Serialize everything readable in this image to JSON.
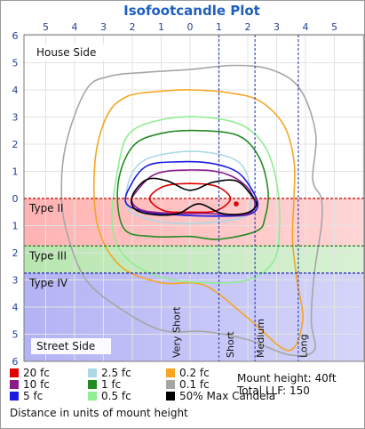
{
  "chart_data": {
    "type": "contour",
    "title": "Isofootcandle Plot",
    "x_ticks": [
      "5",
      "4",
      "3",
      "2",
      "1",
      "0",
      "1",
      "2",
      "3",
      "4",
      "5"
    ],
    "y_ticks": [
      "6",
      "5",
      "4",
      "3",
      "2",
      "1",
      "0",
      "1",
      "2",
      "3",
      "4",
      "5",
      "6"
    ],
    "xlim": [
      -6,
      6
    ],
    "ylim": [
      -6,
      6.5
    ],
    "grid": true,
    "annotations": {
      "house_side": "House Side",
      "street_side": "Street Side"
    },
    "bands": [
      {
        "label": "Type II",
        "from": 0,
        "to": 1.75,
        "color": "#ffb3b3"
      },
      {
        "label": "Type III",
        "from": 1.75,
        "to": 2.75,
        "color": "#b8e6b0"
      },
      {
        "label": "Type IV",
        "from": 2.75,
        "to": 6.5,
        "color": "#b3b3f5"
      }
    ],
    "dividers": [
      {
        "y": 0,
        "color": "#c00000"
      },
      {
        "y": 1.75,
        "color": "#1a7a1a"
      },
      {
        "y": 2.75,
        "color": "#1a1ab0"
      }
    ],
    "verticals": [
      {
        "label": "Very Short",
        "x": 1.0
      },
      {
        "label": "Short",
        "x": 1.0
      },
      {
        "label": "Medium",
        "x": 2.25
      },
      {
        "label": "Long",
        "x": 3.75
      }
    ],
    "max_candela_point": {
      "x": 1.6,
      "y": 0.2
    },
    "contours": [
      {
        "name": "0.1 fc",
        "color": "#a6a6a6",
        "pts": [
          [
            -3.6,
            -4.0
          ],
          [
            -2.8,
            -4.5
          ],
          [
            -1.5,
            -4.65
          ],
          [
            0,
            -4.75
          ],
          [
            1.5,
            -4.9
          ],
          [
            2.8,
            -4.75
          ],
          [
            3.8,
            -4.05
          ],
          [
            4.35,
            -2.4
          ],
          [
            4.25,
            -0.7
          ],
          [
            4.55,
            0
          ],
          [
            4.55,
            1.0
          ],
          [
            4.3,
            2.8
          ],
          [
            4.2,
            4.5
          ],
          [
            4.3,
            5.6
          ],
          [
            3.4,
            5.75
          ],
          [
            2.0,
            5.2
          ],
          [
            0.5,
            4.9
          ],
          [
            -1.0,
            4.85
          ],
          [
            -2.5,
            4.0
          ],
          [
            -3.6,
            3.0
          ],
          [
            -4.2,
            1.5
          ],
          [
            -4.45,
            0
          ],
          [
            -4.3,
            -2.0
          ]
        ]
      },
      {
        "name": "0.2 fc",
        "color": "#f5a623",
        "pts": [
          [
            -2.9,
            -3.0
          ],
          [
            -2.2,
            -3.75
          ],
          [
            -1.0,
            -3.95
          ],
          [
            0,
            -4.0
          ],
          [
            1.3,
            -3.9
          ],
          [
            2.4,
            -3.6
          ],
          [
            3.25,
            -2.7
          ],
          [
            3.6,
            -1.4
          ],
          [
            3.6,
            0
          ],
          [
            3.55,
            1.5
          ],
          [
            3.7,
            3.0
          ],
          [
            3.9,
            4.5
          ],
          [
            3.4,
            5.6
          ],
          [
            2.0,
            4.4
          ],
          [
            0.5,
            3.2
          ],
          [
            -1.0,
            3.1
          ],
          [
            -2.4,
            2.5
          ],
          [
            -3.2,
            1.0
          ],
          [
            -3.3,
            -1.3
          ]
        ]
      },
      {
        "name": "0.5 fc",
        "color": "#90ee90",
        "pts": [
          [
            -2.5,
            -1.1
          ],
          [
            -2.1,
            -2.4
          ],
          [
            -1.0,
            -2.9
          ],
          [
            0.4,
            -3.0
          ],
          [
            1.8,
            -2.7
          ],
          [
            2.6,
            -1.9
          ],
          [
            3.0,
            -0.6
          ],
          [
            3.1,
            1.0
          ],
          [
            2.9,
            2.3
          ],
          [
            2.0,
            3.0
          ],
          [
            0.5,
            3.1
          ],
          [
            -1.0,
            2.9
          ],
          [
            -2.2,
            2.2
          ],
          [
            -2.7,
            1.0
          ]
        ]
      },
      {
        "name": "1 fc",
        "color": "#228b22",
        "pts": [
          [
            -2.5,
            -0.5
          ],
          [
            -2.0,
            -1.9
          ],
          [
            -1.0,
            -2.4
          ],
          [
            0.4,
            -2.5
          ],
          [
            1.7,
            -2.3
          ],
          [
            2.4,
            -1.5
          ],
          [
            2.7,
            -0.3
          ],
          [
            2.6,
            0.7
          ],
          [
            2.3,
            1.2
          ],
          [
            1.0,
            1.5
          ],
          [
            0,
            1.4
          ],
          [
            -1.3,
            1.4
          ],
          [
            -2.3,
            1.1
          ]
        ]
      },
      {
        "name": "2.5 fc",
        "color": "#add8e6",
        "pts": [
          [
            -2.1,
            -0.7
          ],
          [
            -1.6,
            -1.4
          ],
          [
            -0.5,
            -1.7
          ],
          [
            0.6,
            -1.7
          ],
          [
            1.6,
            -1.4
          ],
          [
            2.0,
            -0.8
          ],
          [
            2.1,
            0.2
          ],
          [
            1.8,
            0.7
          ],
          [
            0.5,
            0.9
          ],
          [
            -0.7,
            0.9
          ],
          [
            -1.6,
            0.7
          ],
          [
            -2.2,
            0.3
          ]
        ]
      },
      {
        "name": "5 fc",
        "color": "#1a1ae0",
        "pts": [
          [
            -2.1,
            -0.4
          ],
          [
            -1.5,
            -1.2
          ],
          [
            -0.4,
            -1.35
          ],
          [
            0.7,
            -1.3
          ],
          [
            1.6,
            -1.0
          ],
          [
            2.1,
            -0.4
          ],
          [
            2.35,
            0.25
          ],
          [
            2.0,
            0.6
          ],
          [
            0.8,
            0.65
          ],
          [
            -0.5,
            0.6
          ],
          [
            -1.5,
            0.5
          ],
          [
            -2.2,
            0.2
          ]
        ]
      },
      {
        "name": "10 fc",
        "color": "#8b1a8b",
        "pts": [
          [
            -1.9,
            -0.2
          ],
          [
            -1.2,
            -0.9
          ],
          [
            0,
            -1.05
          ],
          [
            1.1,
            -0.95
          ],
          [
            1.9,
            -0.5
          ],
          [
            2.25,
            0.2
          ],
          [
            1.9,
            0.6
          ],
          [
            0.6,
            0.55
          ],
          [
            -0.6,
            0.55
          ],
          [
            -1.6,
            0.45
          ],
          [
            -2.0,
            0.15
          ]
        ]
      },
      {
        "name": "20 fc",
        "color": "#e00000",
        "pts": [
          [
            -1.4,
            0
          ],
          [
            -0.9,
            -0.45
          ],
          [
            0,
            -0.55
          ],
          [
            0.9,
            -0.45
          ],
          [
            1.4,
            0
          ],
          [
            0.9,
            0.45
          ],
          [
            0,
            0.5
          ],
          [
            -0.9,
            0.45
          ]
        ]
      }
    ],
    "max_candela_contour": {
      "name": "50% Max Candela",
      "color": "#000000",
      "pts": [
        [
          -2.0,
          -0.1
        ],
        [
          -1.5,
          -0.7
        ],
        [
          -0.8,
          -0.65
        ],
        [
          0,
          -0.3
        ],
        [
          0.8,
          -0.6
        ],
        [
          1.6,
          -0.65
        ],
        [
          2.1,
          -0.15
        ],
        [
          2.3,
          0.25
        ],
        [
          1.9,
          0.55
        ],
        [
          1.1,
          0.55
        ],
        [
          0.3,
          0.2
        ],
        [
          -0.4,
          0.55
        ],
        [
          -1.2,
          0.6
        ],
        [
          -1.9,
          0.4
        ]
      ]
    }
  },
  "legend": [
    {
      "label": "20 fc",
      "color": "#e00000"
    },
    {
      "label": "10 fc",
      "color": "#8b1a8b"
    },
    {
      "label": "5 fc",
      "color": "#1a1ae0"
    },
    {
      "label": "2.5 fc",
      "color": "#add8e6"
    },
    {
      "label": "1 fc",
      "color": "#228b22"
    },
    {
      "label": "0.5 fc",
      "color": "#90ee90"
    },
    {
      "label": "0.2 fc",
      "color": "#f5a623"
    },
    {
      "label": "0.1 fc",
      "color": "#a6a6a6"
    },
    {
      "label": "50% Max Candela",
      "color": "#000000"
    }
  ],
  "info": {
    "mount_height": "Mount height: 40ft",
    "total_llf": "Total LLF: 150",
    "units_note": "Distance in units of mount height"
  }
}
